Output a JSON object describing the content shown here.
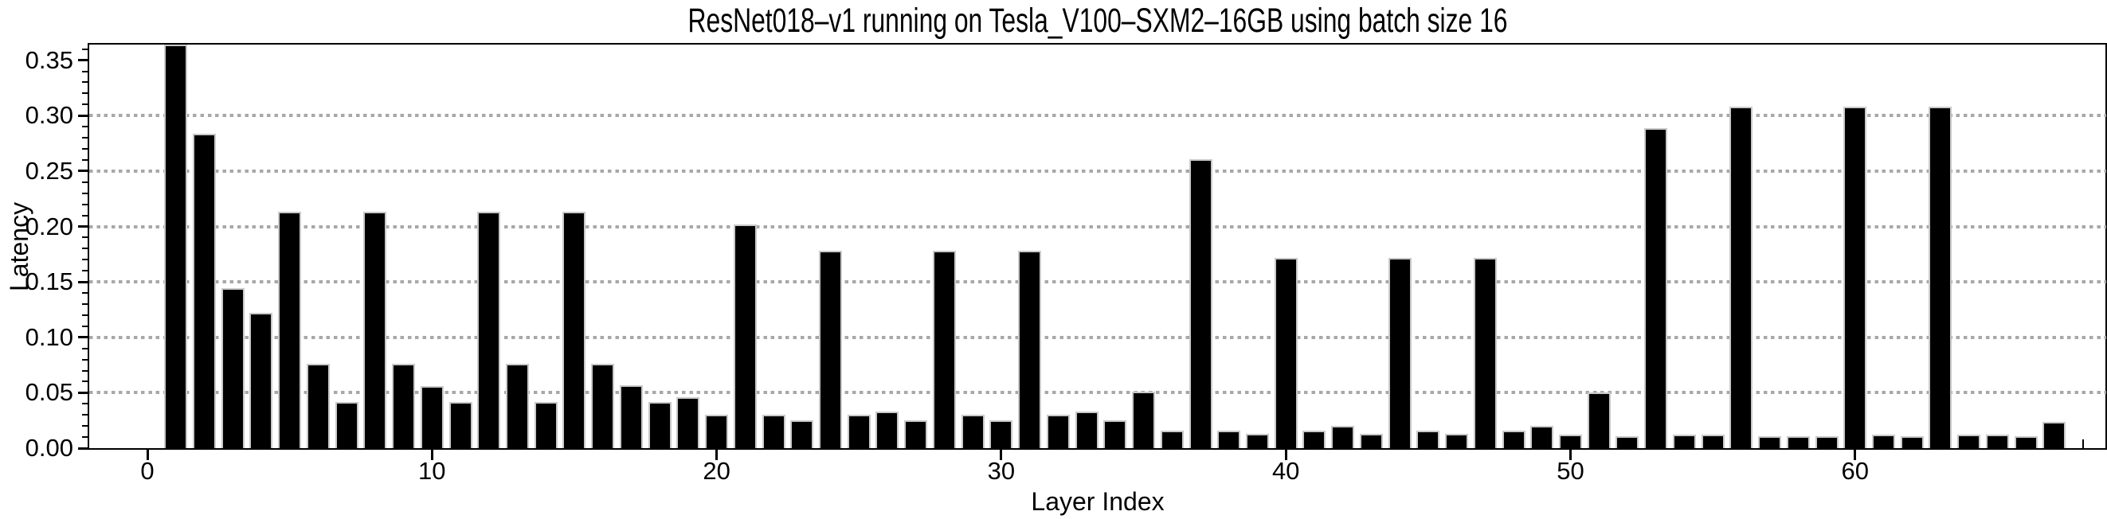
{
  "chart_data": {
    "type": "bar",
    "title": "ResNet018–v1 running on Tesla_V100–SXM2–16GB using batch size 16",
    "xlabel": "Layer Index",
    "ylabel": "Latency",
    "x": [
      1,
      2,
      3,
      4,
      5,
      6,
      7,
      8,
      9,
      10,
      11,
      12,
      13,
      14,
      15,
      16,
      17,
      18,
      19,
      20,
      21,
      22,
      23,
      24,
      25,
      26,
      27,
      28,
      29,
      30,
      31,
      32,
      33,
      34,
      35,
      36,
      37,
      38,
      39,
      40,
      41,
      42,
      43,
      44,
      45,
      46,
      47,
      48,
      49,
      50,
      51,
      52,
      53,
      54,
      55,
      56,
      57,
      58,
      59,
      60,
      61,
      62,
      63,
      64,
      65,
      66,
      67
    ],
    "values": [
      0.364,
      0.284,
      0.144,
      0.122,
      0.213,
      0.076,
      0.042,
      0.213,
      0.076,
      0.056,
      0.042,
      0.213,
      0.076,
      0.042,
      0.213,
      0.076,
      0.057,
      0.042,
      0.046,
      0.03,
      0.202,
      0.03,
      0.025,
      0.178,
      0.03,
      0.033,
      0.025,
      0.178,
      0.03,
      0.025,
      0.178,
      0.03,
      0.033,
      0.025,
      0.051,
      0.016,
      0.261,
      0.016,
      0.013,
      0.172,
      0.016,
      0.02,
      0.013,
      0.172,
      0.016,
      0.013,
      0.172,
      0.016,
      0.02,
      0.012,
      0.05,
      0.011,
      0.289,
      0.012,
      0.012,
      0.308,
      0.011,
      0.011,
      0.011,
      0.308,
      0.012,
      0.011,
      0.308,
      0.012,
      0.012,
      0.011,
      0.024
    ],
    "x_ticks": [
      0,
      10,
      20,
      30,
      40,
      50,
      60
    ],
    "x_tick_labels": [
      "0",
      "10",
      "20",
      "30",
      "40",
      "50",
      "60"
    ],
    "y_ticks": [
      0.0,
      0.05,
      0.1,
      0.15,
      0.2,
      0.25,
      0.3,
      0.35
    ],
    "y_tick_labels": [
      "0.00",
      "0.05",
      "0.10",
      "0.15",
      "0.20",
      "0.25",
      "0.30",
      "0.35"
    ],
    "grid_values": [
      0.05,
      0.1,
      0.15,
      0.2,
      0.25,
      0.3
    ],
    "xlim": [
      -2.05,
      68.44
    ],
    "ylim": [
      0,
      0.3641
    ],
    "grid": "horizontal dotted lines at 0.05 steps, behind bars",
    "legend": "none",
    "bar_color": "#000000",
    "bar_edge_color": "#c9c9c9",
    "grid_color": "#a8a8a8",
    "axis_color": "#000000",
    "background_color": "#ffffff"
  }
}
